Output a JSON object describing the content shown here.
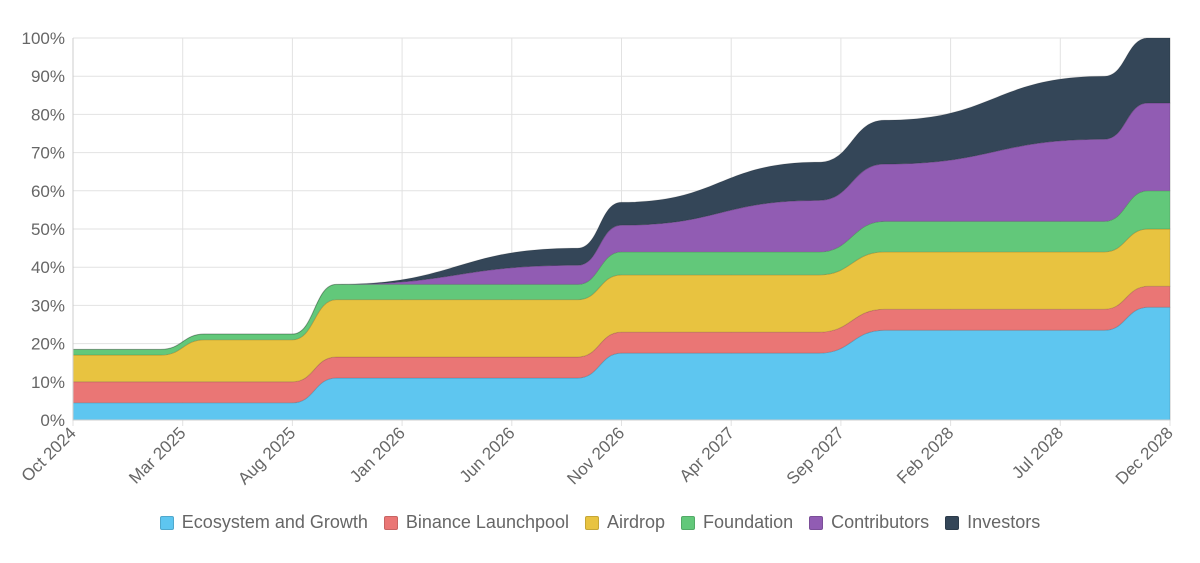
{
  "chart_data": {
    "type": "area",
    "stacked": true,
    "title": "",
    "xlabel": "",
    "ylabel": "",
    "ylim": [
      0,
      100
    ],
    "y_ticks": [
      "0%",
      "10%",
      "20%",
      "30%",
      "40%",
      "50%",
      "60%",
      "70%",
      "80%",
      "90%",
      "100%"
    ],
    "x_ticks": [
      "Oct 2024",
      "Mar 2025",
      "Aug 2025",
      "Jan 2026",
      "Jun 2026",
      "Nov 2026",
      "Apr 2027",
      "Sep 2027",
      "Feb 2028",
      "Jul 2028",
      "Dec 2028"
    ],
    "x": [
      "Oct 2024",
      "Feb 2025",
      "Apr 2025",
      "Aug 2025",
      "Oct 2025",
      "Sep 2026",
      "Nov 2026",
      "Aug 2027",
      "Nov 2027",
      "Sep 2028",
      "Nov 2028",
      "Dec 2028"
    ],
    "series": [
      {
        "name": "Ecosystem and Growth",
        "color": "#5ec6f0",
        "values": [
          4.5,
          4.5,
          4.5,
          4.5,
          11,
          11,
          17.5,
          17.5,
          23.5,
          23.5,
          29.5,
          29.5
        ]
      },
      {
        "name": "Binance Launchpool",
        "color": "#ea7675",
        "values": [
          5.5,
          5.5,
          5.5,
          5.5,
          5.5,
          5.5,
          5.5,
          5.5,
          5.5,
          5.5,
          5.5,
          5.5
        ]
      },
      {
        "name": "Airdrop",
        "color": "#e8c340",
        "values": [
          7,
          7,
          11,
          11,
          15,
          15,
          15,
          15,
          15,
          15,
          15,
          15
        ]
      },
      {
        "name": "Foundation",
        "color": "#62c87a",
        "values": [
          1.5,
          1.5,
          1.5,
          1.5,
          4,
          4,
          6,
          6,
          8,
          8,
          10,
          10
        ]
      },
      {
        "name": "Contributors",
        "color": "#915cb3",
        "values": [
          0,
          0,
          0,
          0,
          0,
          5,
          7,
          13.5,
          15,
          21.5,
          23,
          23
        ]
      },
      {
        "name": "Investors",
        "color": "#344658",
        "values": [
          0,
          0,
          0,
          0,
          0,
          4.5,
          6,
          10,
          11.5,
          16.5,
          17,
          17
        ]
      }
    ],
    "legend_position": "bottom",
    "grid": true
  }
}
